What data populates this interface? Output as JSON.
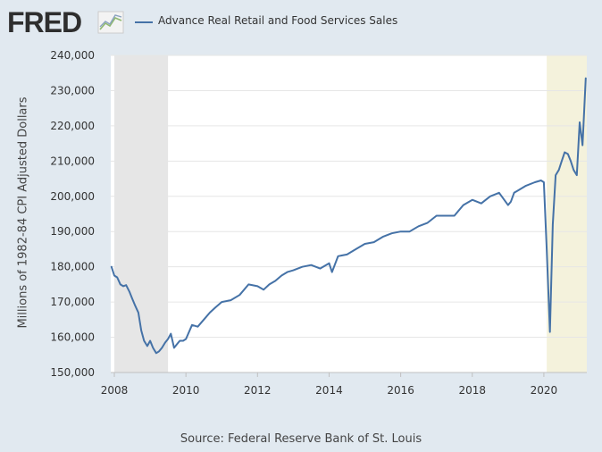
{
  "logo": {
    "text": "FRED",
    "icon": "chart-line-icon"
  },
  "legend": {
    "series_label": "Advance Real Retail and Food Services Sales",
    "color": "#4572a7"
  },
  "source": "Source: Federal Reserve Bank of St. Louis",
  "chart_data": {
    "type": "line",
    "title": "",
    "xlabel": "",
    "ylabel": "Millions of 1982-84 CPI Adjusted Dollars",
    "xlim": [
      2007.9,
      2021.2
    ],
    "ylim": [
      150000,
      240000
    ],
    "x_ticks": [
      2008,
      2010,
      2012,
      2014,
      2016,
      2018,
      2020
    ],
    "x_tick_labels": [
      "2008",
      "2010",
      "2012",
      "2014",
      "2016",
      "2018",
      "2020"
    ],
    "y_ticks": [
      150000,
      160000,
      170000,
      180000,
      190000,
      200000,
      210000,
      220000,
      230000,
      240000
    ],
    "y_tick_labels": [
      "150,000",
      "160,000",
      "170,000",
      "180,000",
      "190,000",
      "200,000",
      "210,000",
      "220,000",
      "230,000",
      "240,000"
    ],
    "grid": "horizontal",
    "recessions": [
      {
        "start": 2008.0,
        "end": 2009.5,
        "color": "#e6e6e6"
      },
      {
        "start": 2020.08,
        "end": 2021.2,
        "color": "#f4f2dc"
      }
    ],
    "series": [
      {
        "name": "Advance Real Retail and Food Services Sales",
        "color": "#4572a7",
        "x": [
          2007.92,
          2008.0,
          2008.08,
          2008.17,
          2008.25,
          2008.33,
          2008.42,
          2008.5,
          2008.58,
          2008.67,
          2008.75,
          2008.83,
          2008.92,
          2009.0,
          2009.08,
          2009.17,
          2009.25,
          2009.33,
          2009.42,
          2009.5,
          2009.58,
          2009.67,
          2009.75,
          2009.83,
          2009.92,
          2010.0,
          2010.17,
          2010.33,
          2010.5,
          2010.67,
          2010.83,
          2011.0,
          2011.25,
          2011.5,
          2011.75,
          2012.0,
          2012.17,
          2012.33,
          2012.5,
          2012.67,
          2012.83,
          2013.0,
          2013.25,
          2013.5,
          2013.75,
          2014.0,
          2014.08,
          2014.25,
          2014.5,
          2014.75,
          2015.0,
          2015.25,
          2015.5,
          2015.75,
          2016.0,
          2016.25,
          2016.5,
          2016.75,
          2017.0,
          2017.25,
          2017.5,
          2017.75,
          2018.0,
          2018.25,
          2018.5,
          2018.75,
          2019.0,
          2019.08,
          2019.17,
          2019.25,
          2019.5,
          2019.75,
          2019.92,
          2020.0,
          2020.08,
          2020.17,
          2020.25,
          2020.33,
          2020.42,
          2020.5,
          2020.58,
          2020.67,
          2020.75,
          2020.83,
          2020.92,
          2021.0,
          2021.08,
          2021.17
        ],
        "y": [
          180000,
          177500,
          177000,
          175000,
          174500,
          174800,
          173000,
          171000,
          169000,
          167000,
          162000,
          159000,
          157500,
          159000,
          157000,
          155500,
          156000,
          157000,
          158500,
          159500,
          161000,
          157000,
          158000,
          159000,
          159000,
          159500,
          163500,
          163000,
          165000,
          167000,
          168500,
          170000,
          170500,
          172000,
          175000,
          174500,
          173500,
          175000,
          176000,
          177500,
          178500,
          179000,
          180000,
          180500,
          179500,
          181000,
          178500,
          183000,
          183500,
          185000,
          186500,
          187000,
          188500,
          189500,
          190000,
          190000,
          191500,
          192500,
          194500,
          194500,
          194500,
          197500,
          199000,
          198000,
          200000,
          201000,
          197500,
          198500,
          201000,
          201500,
          203000,
          204000,
          204500,
          204000,
          185000,
          161500,
          192000,
          206000,
          207500,
          210000,
          212500,
          212000,
          210000,
          207500,
          206000,
          221000,
          214500,
          233500
        ]
      }
    ]
  }
}
